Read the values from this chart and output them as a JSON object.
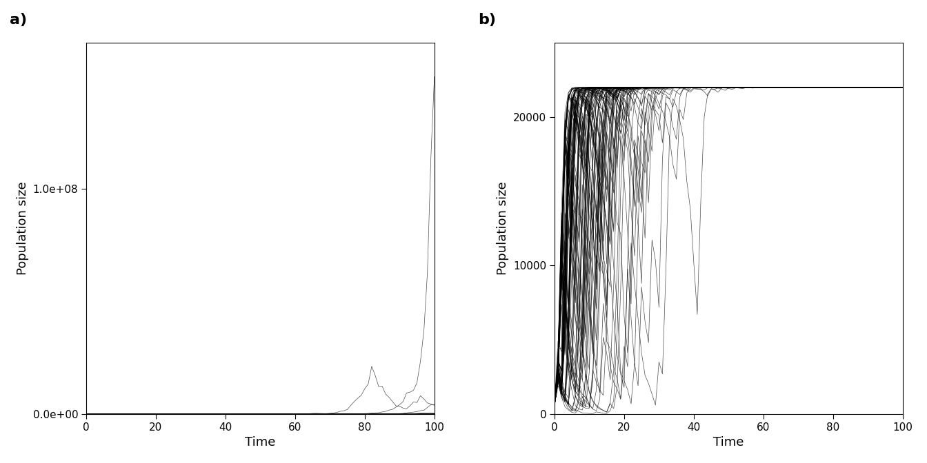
{
  "panel_a_label": "a)",
  "panel_b_label": "b)",
  "xlabel": "Time",
  "ylabel": "Population size",
  "n_replicates": 100,
  "n_time_steps": 100,
  "line_color": "#000000",
  "line_alpha": 0.7,
  "line_width": 0.5,
  "background_color": "#ffffff",
  "panel_a_ylim": [
    0,
    165000000.0
  ],
  "panel_b_ylim": [
    0,
    25000
  ],
  "panel_a_yticks": [
    0.0,
    100000000.0
  ],
  "panel_b_yticks": [
    0,
    10000,
    20000
  ],
  "xticks": [
    0,
    20,
    40,
    60,
    80,
    100
  ],
  "label_fontsize": 16,
  "tick_fontsize": 11,
  "axis_label_fontsize": 13
}
